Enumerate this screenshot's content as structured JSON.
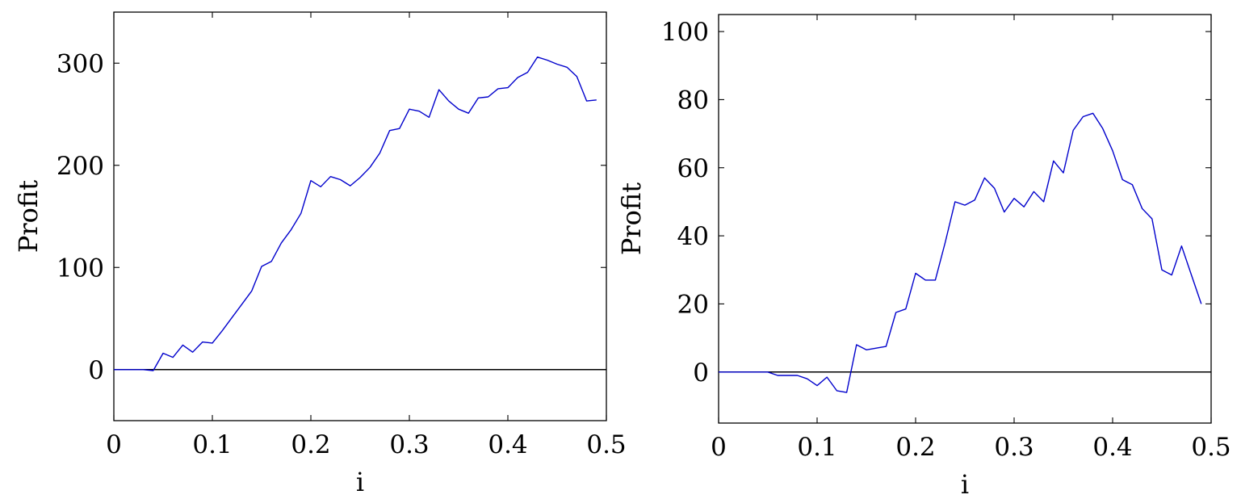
{
  "chart_data": [
    {
      "type": "line",
      "title": "",
      "xlabel": "i",
      "ylabel": "Profit",
      "xlim": [
        0,
        0.5
      ],
      "ylim": [
        -50,
        350
      ],
      "xticks": [
        0,
        0.1,
        0.2,
        0.3,
        0.4,
        0.5
      ],
      "xtick_labels": [
        "0",
        "0.1",
        "0.2",
        "0.3",
        "0.4",
        "0.5"
      ],
      "yticks": [
        0,
        100,
        200,
        300
      ],
      "ytick_labels": [
        "0",
        "100",
        "200",
        "300"
      ],
      "grid": false,
      "zero_line": true,
      "series_color": "#0000cc",
      "series": [
        {
          "x": [
            0,
            0.01,
            0.02,
            0.03,
            0.04,
            0.05,
            0.06,
            0.07,
            0.08,
            0.09,
            0.1,
            0.11,
            0.12,
            0.13,
            0.14,
            0.15,
            0.16,
            0.17,
            0.18,
            0.19,
            0.2,
            0.21,
            0.22,
            0.23,
            0.24,
            0.25,
            0.26,
            0.27,
            0.28,
            0.29,
            0.3,
            0.31,
            0.32,
            0.33,
            0.34,
            0.35,
            0.36,
            0.37,
            0.38,
            0.39,
            0.4,
            0.41,
            0.42,
            0.43,
            0.44,
            0.45,
            0.46,
            0.47,
            0.48,
            0.49
          ],
          "values": [
            0,
            0,
            0,
            0,
            -1,
            16,
            12,
            24,
            17,
            27,
            26,
            38,
            51,
            64,
            77,
            101,
            106,
            124,
            137,
            153,
            185,
            179,
            189,
            186,
            180,
            188,
            198,
            212,
            234,
            236,
            255,
            253,
            247,
            274,
            263,
            255,
            251,
            266,
            267,
            275,
            276,
            286,
            291,
            306,
            303,
            299,
            296,
            287,
            263,
            264
          ]
        }
      ]
    },
    {
      "type": "line",
      "title": "",
      "xlabel": "i",
      "ylabel": "Profit",
      "xlim": [
        0,
        0.5
      ],
      "ylim": [
        -15,
        105
      ],
      "xticks": [
        0,
        0.1,
        0.2,
        0.3,
        0.4,
        0.5
      ],
      "xtick_labels": [
        "0",
        "0.1",
        "0.2",
        "0.3",
        "0.4",
        "0.5"
      ],
      "yticks": [
        0,
        20,
        40,
        60,
        80,
        100
      ],
      "ytick_labels": [
        "0",
        "20",
        "40",
        "60",
        "80",
        "100"
      ],
      "grid": false,
      "zero_line": true,
      "series_color": "#0000cc",
      "series": [
        {
          "x": [
            0,
            0.01,
            0.02,
            0.03,
            0.04,
            0.05,
            0.06,
            0.07,
            0.08,
            0.09,
            0.1,
            0.11,
            0.12,
            0.13,
            0.14,
            0.15,
            0.16,
            0.17,
            0.18,
            0.19,
            0.2,
            0.21,
            0.22,
            0.23,
            0.24,
            0.25,
            0.26,
            0.27,
            0.28,
            0.29,
            0.3,
            0.31,
            0.32,
            0.33,
            0.34,
            0.35,
            0.36,
            0.37,
            0.38,
            0.39,
            0.4,
            0.41,
            0.42,
            0.43,
            0.44,
            0.45,
            0.46,
            0.47,
            0.48,
            0.49
          ],
          "values": [
            0,
            0,
            0,
            0,
            0,
            0,
            -1,
            -1,
            -1,
            -2,
            -4,
            -1.5,
            -5.5,
            -6,
            8,
            6.5,
            7,
            7.5,
            17.5,
            18.5,
            29,
            27,
            27,
            38,
            50,
            49,
            50.5,
            57,
            54,
            47,
            51,
            48.5,
            53,
            50,
            62,
            58.5,
            71,
            75,
            76,
            71.5,
            65,
            56.5,
            55,
            48,
            45,
            30,
            28.5,
            37,
            28.5,
            20
          ]
        }
      ]
    }
  ]
}
